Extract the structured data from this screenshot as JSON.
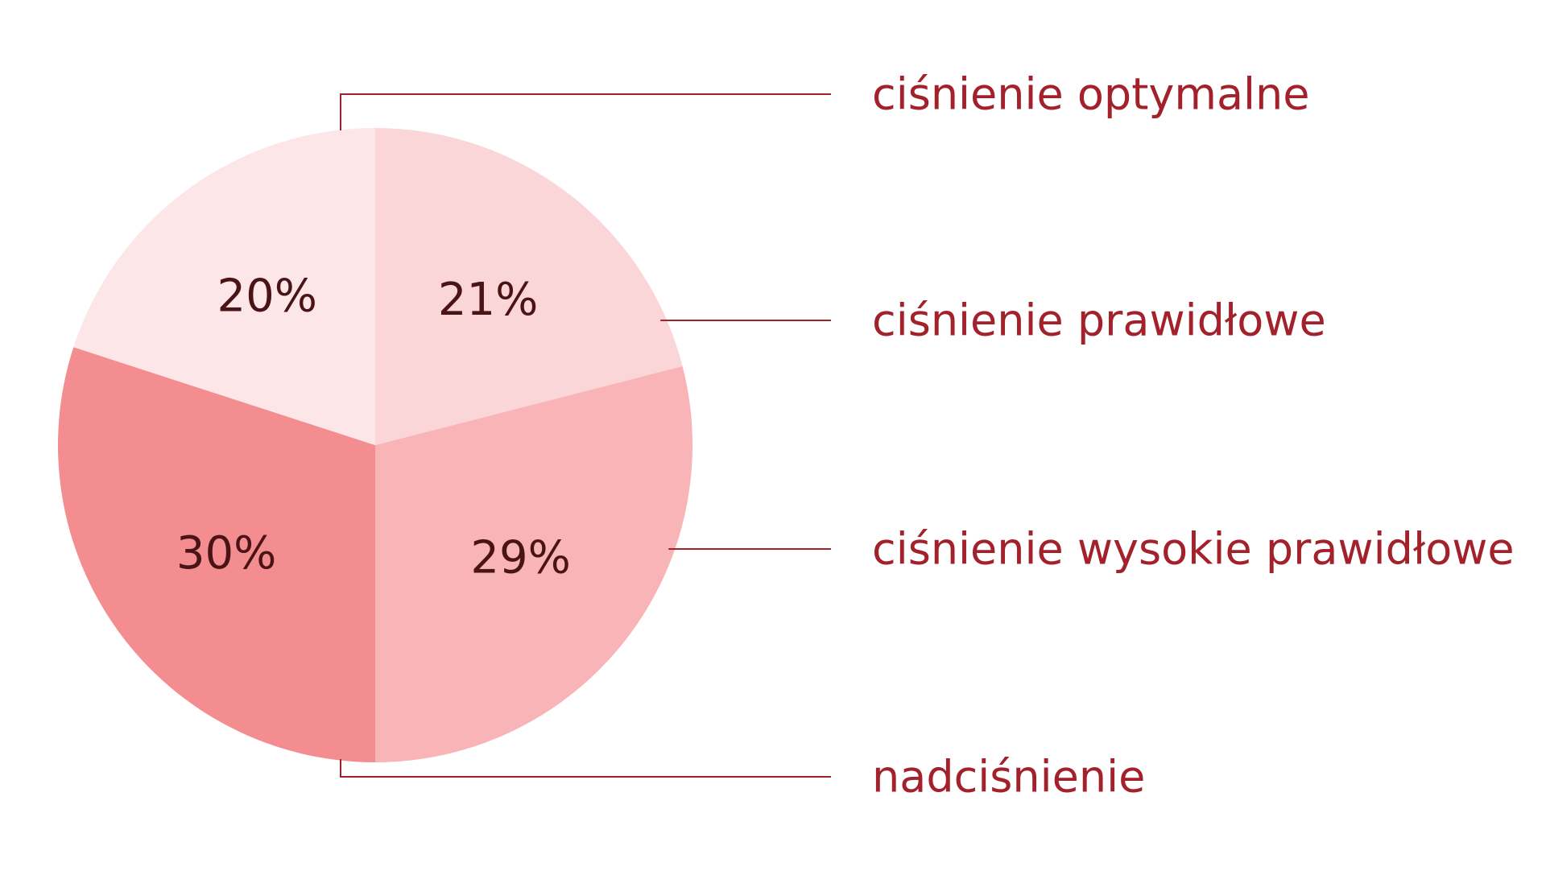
{
  "chart_data": {
    "type": "pie",
    "slices": [
      {
        "name": "ciśnienie optymalne",
        "value": 20,
        "label": "20%",
        "color": "#fde6e8"
      },
      {
        "name": "ciśnienie prawidłowe",
        "value": 21,
        "label": "21%",
        "color": "#fbd6d8"
      },
      {
        "name": "ciśnienie wysokie prawidłowe",
        "value": 29,
        "label": "29%",
        "color": "#f8b4b6"
      },
      {
        "name": "nadciśnienie",
        "value": 30,
        "label": "30%",
        "color": "#f48d8f"
      }
    ],
    "legend_placement": "right",
    "colors": {
      "legend_text": "#a3212b",
      "leader_line": "#a3212b",
      "slice_label_text": "#4a1416"
    }
  }
}
